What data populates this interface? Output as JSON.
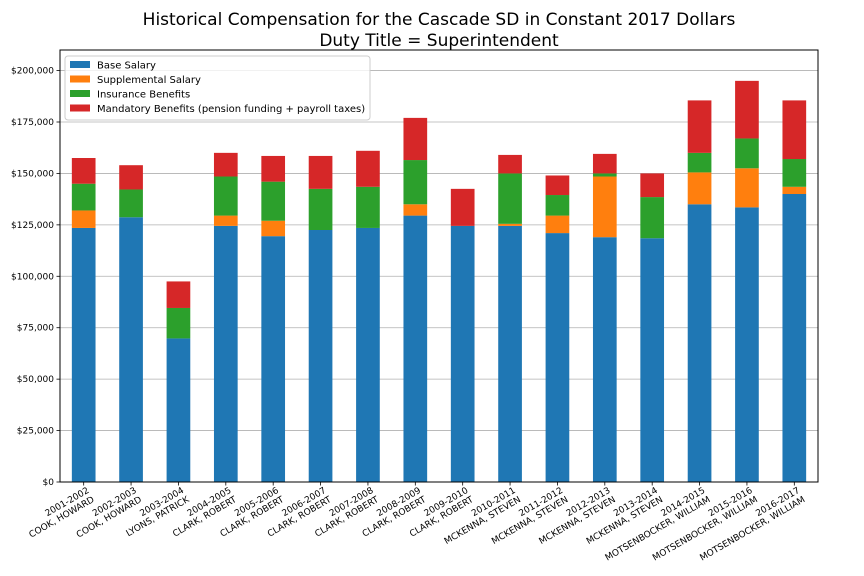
{
  "chart_data": {
    "type": "bar",
    "stacked": true,
    "title": "Historical Compensation for the Cascade SD in Constant 2017 Dollars",
    "subtitle": "Duty Title = Superintendent",
    "xlabel": "",
    "ylabel": "",
    "ylim": [
      0,
      210000
    ],
    "yticks": [
      "$0",
      "$25,000",
      "$50,000",
      "$75,000",
      "$100,000",
      "$125,000",
      "$150,000",
      "$175,000",
      "$200,000"
    ],
    "ytick_values": [
      0,
      25000,
      50000,
      75000,
      100000,
      125000,
      150000,
      175000,
      200000
    ],
    "grid": "horizontal",
    "legend_position": "top-left",
    "categories": [
      [
        "2001-2002",
        "COOK, HOWARD"
      ],
      [
        "2002-2003",
        "COOK, HOWARD"
      ],
      [
        "2003-2004",
        "LYONS, PATRICK"
      ],
      [
        "2004-2005",
        "CLARK, ROBERT"
      ],
      [
        "2005-2006",
        "CLARK, ROBERT"
      ],
      [
        "2006-2007",
        "CLARK, ROBERT"
      ],
      [
        "2007-2008",
        "CLARK, ROBERT"
      ],
      [
        "2008-2009",
        "CLARK, ROBERT"
      ],
      [
        "2009-2010",
        "CLARK, ROBERT"
      ],
      [
        "2010-2011",
        "MCKENNA, STEVEN"
      ],
      [
        "2011-2012",
        "MCKENNA, STEVEN"
      ],
      [
        "2012-2013",
        "MCKENNA, STEVEN"
      ],
      [
        "2013-2014",
        "MCKENNA, STEVEN"
      ],
      [
        "2014-2015",
        "MOTSENBOCKER, WILLIAM"
      ],
      [
        "2015-2016",
        "MOTSENBOCKER, WILLIAM"
      ],
      [
        "2016-2017",
        "MOTSENBOCKER, WILLIAM"
      ]
    ],
    "series": [
      {
        "name": "Base Salary",
        "color": "#1f77b4",
        "values": [
          123500,
          128700,
          69800,
          124500,
          119500,
          122500,
          123500,
          129500,
          124500,
          124500,
          121000,
          119000,
          118500,
          135000,
          133500,
          140000
        ]
      },
      {
        "name": "Supplemental Salary",
        "color": "#ff7f0e",
        "values": [
          8500,
          0,
          0,
          5000,
          7500,
          0,
          0,
          5500,
          0,
          1000,
          8500,
          29500,
          0,
          15500,
          19000,
          3500
        ]
      },
      {
        "name": "Insurance Benefits",
        "color": "#2ca02c",
        "values": [
          13000,
          13500,
          14800,
          19000,
          19000,
          20000,
          20000,
          21500,
          0,
          24500,
          10000,
          1500,
          20000,
          9500,
          14500,
          13500
        ]
      },
      {
        "name": "Mandatory Benefits (pension funding + payroll taxes)",
        "color": "#d62728",
        "values": [
          12500,
          11800,
          12900,
          11500,
          12500,
          16000,
          17500,
          20500,
          18000,
          9000,
          9500,
          9500,
          11500,
          25500,
          28000,
          28500
        ]
      }
    ]
  }
}
